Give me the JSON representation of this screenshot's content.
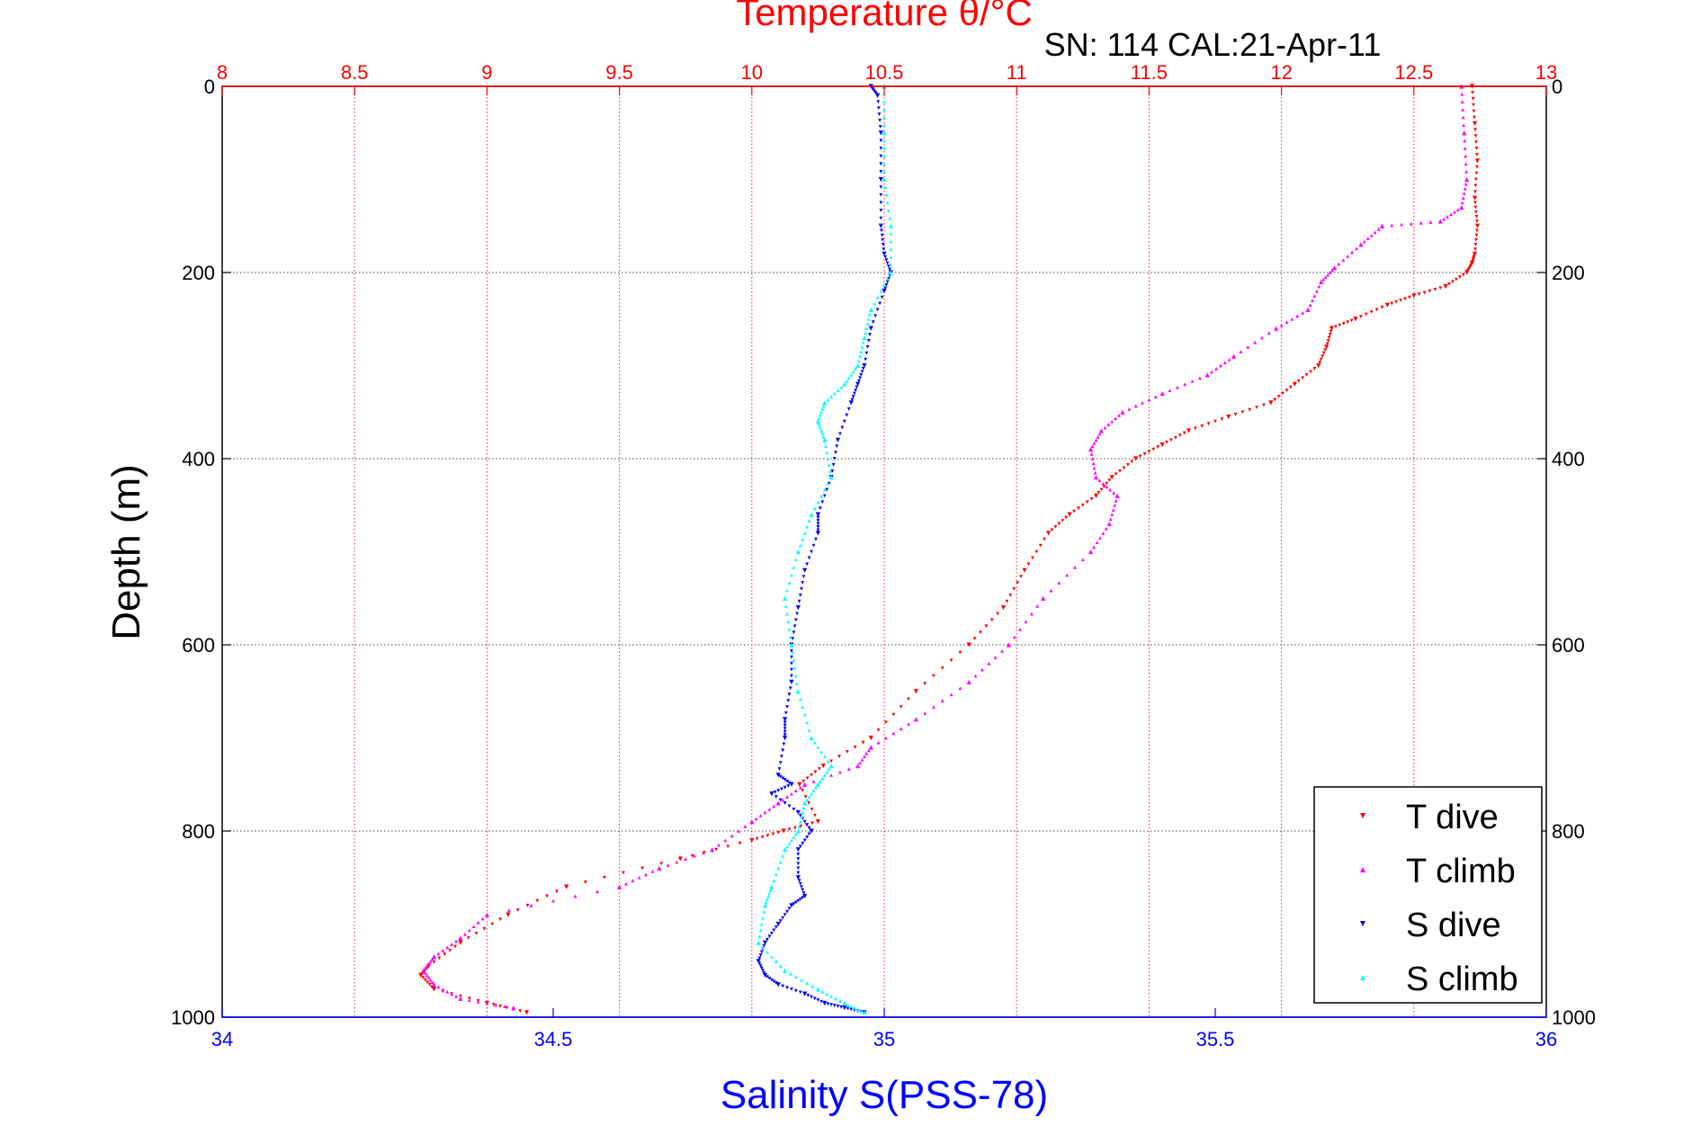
{
  "chart_data": {
    "type": "scatter",
    "title": "Temperature θ/°C",
    "subtitle": "SN: 114  CAL:21-Apr-11",
    "xlabel_bottom": "Salinity S(PSS-78)",
    "xlabel_top": "Temperature θ/°C",
    "ylabel": "Depth (m)",
    "ylim": [
      1000,
      0
    ],
    "y_reversed": true,
    "xlim_bottom": [
      34,
      36
    ],
    "xlim_top": [
      8,
      13
    ],
    "y_ticks": [
      "0",
      "200",
      "400",
      "600",
      "800",
      "1000"
    ],
    "x_bottom_ticks": [
      "34",
      "34.5",
      "35",
      "35.5",
      "36"
    ],
    "x_top_ticks": [
      "8",
      "8.5",
      "9",
      "9.5",
      "10",
      "10.5",
      "11",
      "11.5",
      "12",
      "12.5",
      "13"
    ],
    "grid": true,
    "legend_position": "bottom-right",
    "colors": {
      "T dive": "#ff0000",
      "T climb": "#ff00ff",
      "S dive": "#0000ff",
      "S climb": "#00ffff",
      "top_axis": "#ff0000",
      "bottom_axis": "#0000ff"
    },
    "series": [
      {
        "name": "T dive",
        "axis": "top",
        "marker": "down-triangle",
        "x": [
          12.72,
          12.73,
          12.74,
          12.73,
          12.74,
          12.73,
          12.72,
          12.7,
          12.62,
          12.5,
          12.4,
          12.28,
          12.19,
          12.17,
          12.14,
          12.05,
          11.96,
          11.8,
          11.65,
          11.55,
          11.45,
          11.36,
          11.3,
          11.2,
          11.12,
          11.03,
          10.95,
          10.82,
          10.62,
          10.45,
          10.27,
          10.18,
          10.25,
          10.12,
          10.0,
          9.73,
          9.3,
          9.08,
          8.9,
          8.78,
          8.75,
          8.8,
          9.0,
          9.15
        ],
        "y": [
          0,
          40,
          80,
          120,
          150,
          180,
          190,
          200,
          215,
          225,
          235,
          250,
          260,
          280,
          300,
          320,
          340,
          355,
          370,
          385,
          400,
          420,
          440,
          460,
          480,
          520,
          560,
          600,
          650,
          700,
          730,
          750,
          790,
          800,
          810,
          830,
          860,
          890,
          920,
          945,
          955,
          970,
          985,
          995
        ]
      },
      {
        "name": "T climb",
        "axis": "top",
        "marker": "up-triangle",
        "x": [
          12.68,
          12.69,
          12.7,
          12.68,
          12.6,
          12.38,
          12.3,
          12.2,
          12.15,
          12.1,
          11.98,
          11.82,
          11.72,
          11.55,
          11.4,
          11.32,
          11.28,
          11.3,
          11.38,
          11.35,
          11.28,
          11.1,
          10.97,
          10.82,
          10.62,
          10.45,
          10.4,
          10.2,
          10.1,
          10.0,
          9.85,
          9.65,
          9.5,
          9.0,
          8.9,
          8.8,
          8.76,
          8.8,
          8.9,
          9.1
        ],
        "y": [
          0,
          50,
          100,
          130,
          145,
          150,
          170,
          195,
          210,
          240,
          260,
          290,
          310,
          330,
          350,
          370,
          390,
          420,
          440,
          470,
          500,
          550,
          600,
          640,
          680,
          710,
          730,
          750,
          770,
          790,
          820,
          840,
          860,
          890,
          915,
          935,
          950,
          965,
          980,
          990
        ]
      },
      {
        "name": "S dive",
        "axis": "bottom",
        "marker": "down-triangle",
        "x": [
          34.98,
          34.99,
          34.995,
          34.995,
          34.995,
          35.0,
          35.01,
          35.0,
          34.98,
          34.97,
          34.96,
          34.95,
          34.93,
          34.92,
          34.9,
          34.9,
          34.88,
          34.87,
          34.86,
          34.86,
          34.85,
          34.85,
          34.84,
          34.86,
          34.83,
          34.87,
          34.89,
          34.87,
          34.87,
          34.88,
          34.86,
          34.84,
          34.82,
          34.81,
          34.82,
          34.84,
          34.88,
          34.91,
          34.94,
          34.97
        ],
        "y": [
          0,
          10,
          50,
          100,
          150,
          180,
          200,
          220,
          260,
          300,
          320,
          340,
          380,
          420,
          460,
          480,
          520,
          560,
          600,
          640,
          680,
          700,
          740,
          750,
          760,
          780,
          800,
          820,
          850,
          870,
          880,
          900,
          920,
          940,
          955,
          965,
          975,
          985,
          990,
          995
        ]
      },
      {
        "name": "S climb",
        "axis": "bottom",
        "marker": "up-triangle",
        "x": [
          35.0,
          35.0,
          35.0,
          35.01,
          35.01,
          34.98,
          34.97,
          34.96,
          34.94,
          34.91,
          34.9,
          34.91,
          34.92,
          34.89,
          34.87,
          34.85,
          34.86,
          34.87,
          34.89,
          34.92,
          34.9,
          34.88,
          34.87,
          34.85,
          34.83,
          34.82,
          34.81,
          34.85,
          34.9,
          34.94,
          34.97
        ],
        "y": [
          0,
          50,
          100,
          150,
          200,
          240,
          270,
          300,
          320,
          340,
          360,
          380,
          420,
          460,
          500,
          550,
          600,
          650,
          700,
          730,
          750,
          770,
          800,
          820,
          860,
          880,
          920,
          950,
          970,
          985,
          995
        ]
      }
    ]
  }
}
